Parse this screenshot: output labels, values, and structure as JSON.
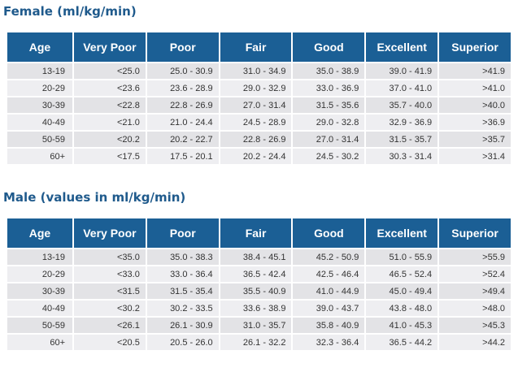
{
  "female": {
    "title": "Female (ml/kg/min)",
    "headers": [
      "Age",
      "Very Poor",
      "Poor",
      "Fair",
      "Good",
      "Excellent",
      "Superior"
    ],
    "rows": [
      [
        "13-19",
        "<25.0",
        "25.0 - 30.9",
        "31.0 - 34.9",
        "35.0 - 38.9",
        "39.0 - 41.9",
        ">41.9"
      ],
      [
        "20-29",
        "<23.6",
        "23.6 - 28.9",
        "29.0 - 32.9",
        "33.0 - 36.9",
        "37.0 - 41.0",
        ">41.0"
      ],
      [
        "30-39",
        "<22.8",
        "22.8 - 26.9",
        "27.0 - 31.4",
        "31.5 - 35.6",
        "35.7 - 40.0",
        ">40.0"
      ],
      [
        "40-49",
        "<21.0",
        "21.0 - 24.4",
        "24.5 - 28.9",
        "29.0 - 32.8",
        "32.9 - 36.9",
        ">36.9"
      ],
      [
        "50-59",
        "<20.2",
        "20.2 - 22.7",
        "22.8 - 26.9",
        "27.0 - 31.4",
        "31.5 - 35.7",
        ">35.7"
      ],
      [
        "60+",
        "<17.5",
        "17.5 - 20.1",
        "20.2 - 24.4",
        "24.5 - 30.2",
        "30.3 - 31.4",
        ">31.4"
      ]
    ]
  },
  "male": {
    "title": "Male (values in ml/kg/min)",
    "headers": [
      "Age",
      "Very Poor",
      "Poor",
      "Fair",
      "Good",
      "Excellent",
      "Superior"
    ],
    "rows": [
      [
        "13-19",
        "<35.0",
        "35.0 - 38.3",
        "38.4 - 45.1",
        "45.2 - 50.9",
        "51.0 - 55.9",
        ">55.9"
      ],
      [
        "20-29",
        "<33.0",
        "33.0 - 36.4",
        "36.5 - 42.4",
        "42.5 - 46.4",
        "46.5 - 52.4",
        ">52.4"
      ],
      [
        "30-39",
        "<31.5",
        "31.5 - 35.4",
        "35.5 - 40.9",
        "41.0 - 44.9",
        "45.0 - 49.4",
        ">49.4"
      ],
      [
        "40-49",
        "<30.2",
        "30.2 - 33.5",
        "33.6 - 38.9",
        "39.0 - 43.7",
        "43.8 - 48.0",
        ">48.0"
      ],
      [
        "50-59",
        "<26.1",
        "26.1 - 30.9",
        "31.0 - 35.7",
        "35.8 - 40.9",
        "41.0 - 45.3",
        ">45.3"
      ],
      [
        "60+",
        "<20.5",
        "20.5 - 26.0",
        "26.1 - 32.2",
        "32.3 - 36.4",
        "36.5 - 44.2",
        ">44.2"
      ]
    ]
  },
  "colors": {
    "title": "#1f5a8c",
    "header_bg": "#1b5f95",
    "header_text": "#ffffff",
    "row_bg": "#e3e3e6",
    "row_alt_bg": "#eeeef1",
    "cell_text": "#333333"
  }
}
